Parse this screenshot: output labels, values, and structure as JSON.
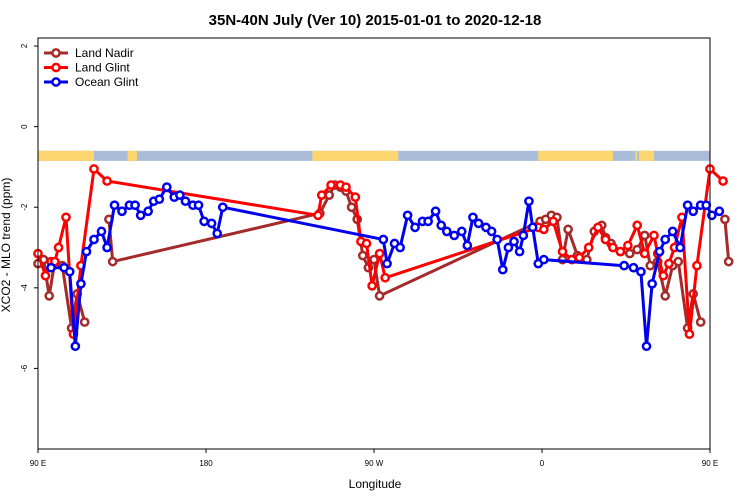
{
  "chart_data": {
    "type": "line",
    "title": "35N-40N July (Ver 10)   2015-01-01 to 2020-12-18",
    "xlabel": "Longitude",
    "ylabel": "XCO2 - MLO trend (ppm)",
    "xlim": [
      90,
      450
    ],
    "ylim": [
      -8,
      2.2
    ],
    "x_ticks": [
      {
        "value": 90,
        "label": "90 E"
      },
      {
        "value": 180,
        "label": "180"
      },
      {
        "value": 270,
        "label": "90 W"
      },
      {
        "value": 360,
        "label": "0"
      },
      {
        "value": 450,
        "label": "90 E"
      },
      {
        "value": 540,
        "label": "180"
      }
    ],
    "y_ticks": [
      {
        "value": 2,
        "label": "2"
      },
      {
        "value": 0,
        "label": "0"
      },
      {
        "value": -2,
        "label": "-2"
      },
      {
        "value": -4,
        "label": "-4"
      },
      {
        "value": -6,
        "label": "-6"
      }
    ],
    "grid": false,
    "legend_position": "top-left",
    "land_mask_band": {
      "y_range": [
        -0.85,
        -0.6
      ],
      "ocean_color": "#a9bdd9",
      "land_color": "#fdd670",
      "land_segments": [
        [
          90,
          120
        ],
        [
          138,
          143
        ],
        [
          237,
          283
        ],
        [
          358,
          398
        ],
        [
          410,
          411
        ],
        [
          412,
          420
        ],
        [
          474,
          497
        ]
      ]
    },
    "series": [
      {
        "name": "Land Nadir",
        "color": "#a52a2a",
        "points": [
          [
            90,
            -3.4
          ],
          [
            93,
            -3.3
          ],
          [
            96,
            -4.2
          ],
          [
            99,
            -3.35
          ],
          [
            103,
            -3.45
          ],
          [
            108,
            -5.0
          ],
          [
            111,
            -4.15
          ],
          [
            115,
            -4.85
          ],
          [
            118,
            null
          ],
          [
            128,
            -2.3
          ],
          [
            130,
            -3.35
          ],
          [
            241,
            -2.15
          ],
          [
            246,
            -1.7
          ],
          [
            249,
            -1.45
          ],
          [
            252,
            -1.5
          ],
          [
            255,
            -1.6
          ],
          [
            258,
            -2.0
          ],
          [
            261,
            -2.3
          ],
          [
            264,
            -3.2
          ],
          [
            267,
            -3.5
          ],
          [
            270,
            -3.3
          ],
          [
            273,
            -4.2
          ],
          [
            359,
            -2.35
          ],
          [
            362,
            -2.3
          ],
          [
            365,
            -2.2
          ],
          [
            368,
            -2.25
          ],
          [
            371,
            -3.3
          ],
          [
            374,
            -2.55
          ],
          [
            379,
            -3.2
          ],
          [
            384,
            -3.3
          ],
          [
            388,
            -2.6
          ],
          [
            392,
            -2.45
          ],
          [
            394,
            -2.75
          ],
          [
            397,
            -2.9
          ],
          [
            402,
            -3.1
          ],
          [
            407,
            -3.15
          ],
          [
            411,
            -3.05
          ],
          [
            415,
            -2.7
          ],
          [
            418,
            -3.45
          ],
          [
            422,
            -3.35
          ],
          [
            426,
            -4.2
          ],
          [
            430,
            -3.45
          ],
          [
            433,
            -3.35
          ],
          [
            438,
            -5.0
          ],
          [
            441,
            -4.15
          ],
          [
            445,
            -4.85
          ],
          [
            448,
            null
          ],
          [
            458,
            -2.3
          ],
          [
            460,
            -3.35
          ]
        ]
      },
      {
        "name": "Land Glint",
        "color": "#ff0000",
        "points": [
          [
            90,
            -3.15
          ],
          [
            94,
            -3.7
          ],
          [
            97,
            -3.35
          ],
          [
            99,
            -3.35
          ],
          [
            101,
            -3.0
          ],
          [
            105,
            -2.25
          ],
          [
            109,
            -5.15
          ],
          [
            113,
            -3.45
          ],
          [
            120,
            -1.05
          ],
          [
            127,
            -1.35
          ],
          [
            240,
            -2.2
          ],
          [
            242,
            -1.7
          ],
          [
            247,
            -1.45
          ],
          [
            252,
            -1.45
          ],
          [
            255,
            -1.5
          ],
          [
            260,
            -1.75
          ],
          [
            263,
            -2.85
          ],
          [
            266,
            -2.9
          ],
          [
            269,
            -3.95
          ],
          [
            273,
            -3.15
          ],
          [
            276,
            -3.75
          ],
          [
            358,
            -2.5
          ],
          [
            361,
            -2.55
          ],
          [
            366,
            -2.35
          ],
          [
            371,
            -3.1
          ],
          [
            376,
            -3.3
          ],
          [
            380,
            -3.25
          ],
          [
            385,
            -3.0
          ],
          [
            390,
            -2.5
          ],
          [
            394,
            -2.8
          ],
          [
            398,
            -3.0
          ],
          [
            402,
            -3.1
          ],
          [
            406,
            -2.95
          ],
          [
            411,
            -2.45
          ],
          [
            415,
            -3.15
          ],
          [
            420,
            -2.7
          ],
          [
            422,
            -3.15
          ],
          [
            425,
            -3.7
          ],
          [
            428,
            -3.4
          ],
          [
            431,
            -3.0
          ],
          [
            435,
            -2.25
          ],
          [
            439,
            -5.15
          ],
          [
            443,
            -3.45
          ],
          [
            450,
            -1.05
          ],
          [
            457,
            -1.35
          ]
        ]
      },
      {
        "name": "Ocean Glint",
        "color": "#0000ee",
        "points": [
          [
            97,
            -3.5
          ],
          [
            104,
            -3.5
          ],
          [
            107,
            -3.6
          ],
          [
            110,
            -5.45
          ],
          [
            113,
            -3.9
          ],
          [
            116,
            -3.1
          ],
          [
            120,
            -2.8
          ],
          [
            124,
            -2.6
          ],
          [
            127,
            -3.0
          ],
          [
            131,
            -1.95
          ],
          [
            135,
            -2.1
          ],
          [
            139,
            -1.95
          ],
          [
            142,
            -1.95
          ],
          [
            145,
            -2.2
          ],
          [
            149,
            -2.1
          ],
          [
            152,
            -1.85
          ],
          [
            155,
            -1.8
          ],
          [
            159,
            -1.5
          ],
          [
            163,
            -1.75
          ],
          [
            166,
            -1.7
          ],
          [
            169,
            -1.85
          ],
          [
            173,
            -1.95
          ],
          [
            176,
            -1.95
          ],
          [
            179,
            -2.35
          ],
          [
            183,
            -2.4
          ],
          [
            186,
            -2.65
          ],
          [
            189,
            -2.0
          ],
          [
            275,
            -2.8
          ],
          [
            277,
            -3.4
          ],
          [
            281,
            -2.9
          ],
          [
            284,
            -3.0
          ],
          [
            288,
            -2.2
          ],
          [
            292,
            -2.5
          ],
          [
            296,
            -2.35
          ],
          [
            299,
            -2.35
          ],
          [
            303,
            -2.1
          ],
          [
            306,
            -2.45
          ],
          [
            309,
            -2.6
          ],
          [
            313,
            -2.7
          ],
          [
            317,
            -2.6
          ],
          [
            320,
            -2.95
          ],
          [
            323,
            -2.25
          ],
          [
            326,
            -2.4
          ],
          [
            330,
            -2.5
          ],
          [
            333,
            -2.6
          ],
          [
            336,
            -2.8
          ],
          [
            339,
            -3.55
          ],
          [
            342,
            -3.0
          ],
          [
            345,
            -2.85
          ],
          [
            348,
            -3.1
          ],
          [
            350,
            -2.7
          ],
          [
            353,
            -1.85
          ],
          [
            355,
            -2.5
          ],
          [
            358,
            -3.4
          ],
          [
            361,
            -3.3
          ],
          [
            404,
            -3.45
          ],
          [
            409,
            -3.5
          ],
          [
            413,
            -3.6
          ],
          [
            416,
            -5.45
          ],
          [
            419,
            -3.9
          ],
          [
            423,
            -3.1
          ],
          [
            426,
            -2.8
          ],
          [
            430,
            -2.6
          ],
          [
            434,
            -3.0
          ],
          [
            438,
            -1.95
          ],
          [
            441,
            -2.1
          ],
          [
            445,
            -1.95
          ],
          [
            448,
            -1.95
          ],
          [
            451,
            -2.2
          ],
          [
            455,
            -2.1
          ]
        ]
      }
    ]
  }
}
